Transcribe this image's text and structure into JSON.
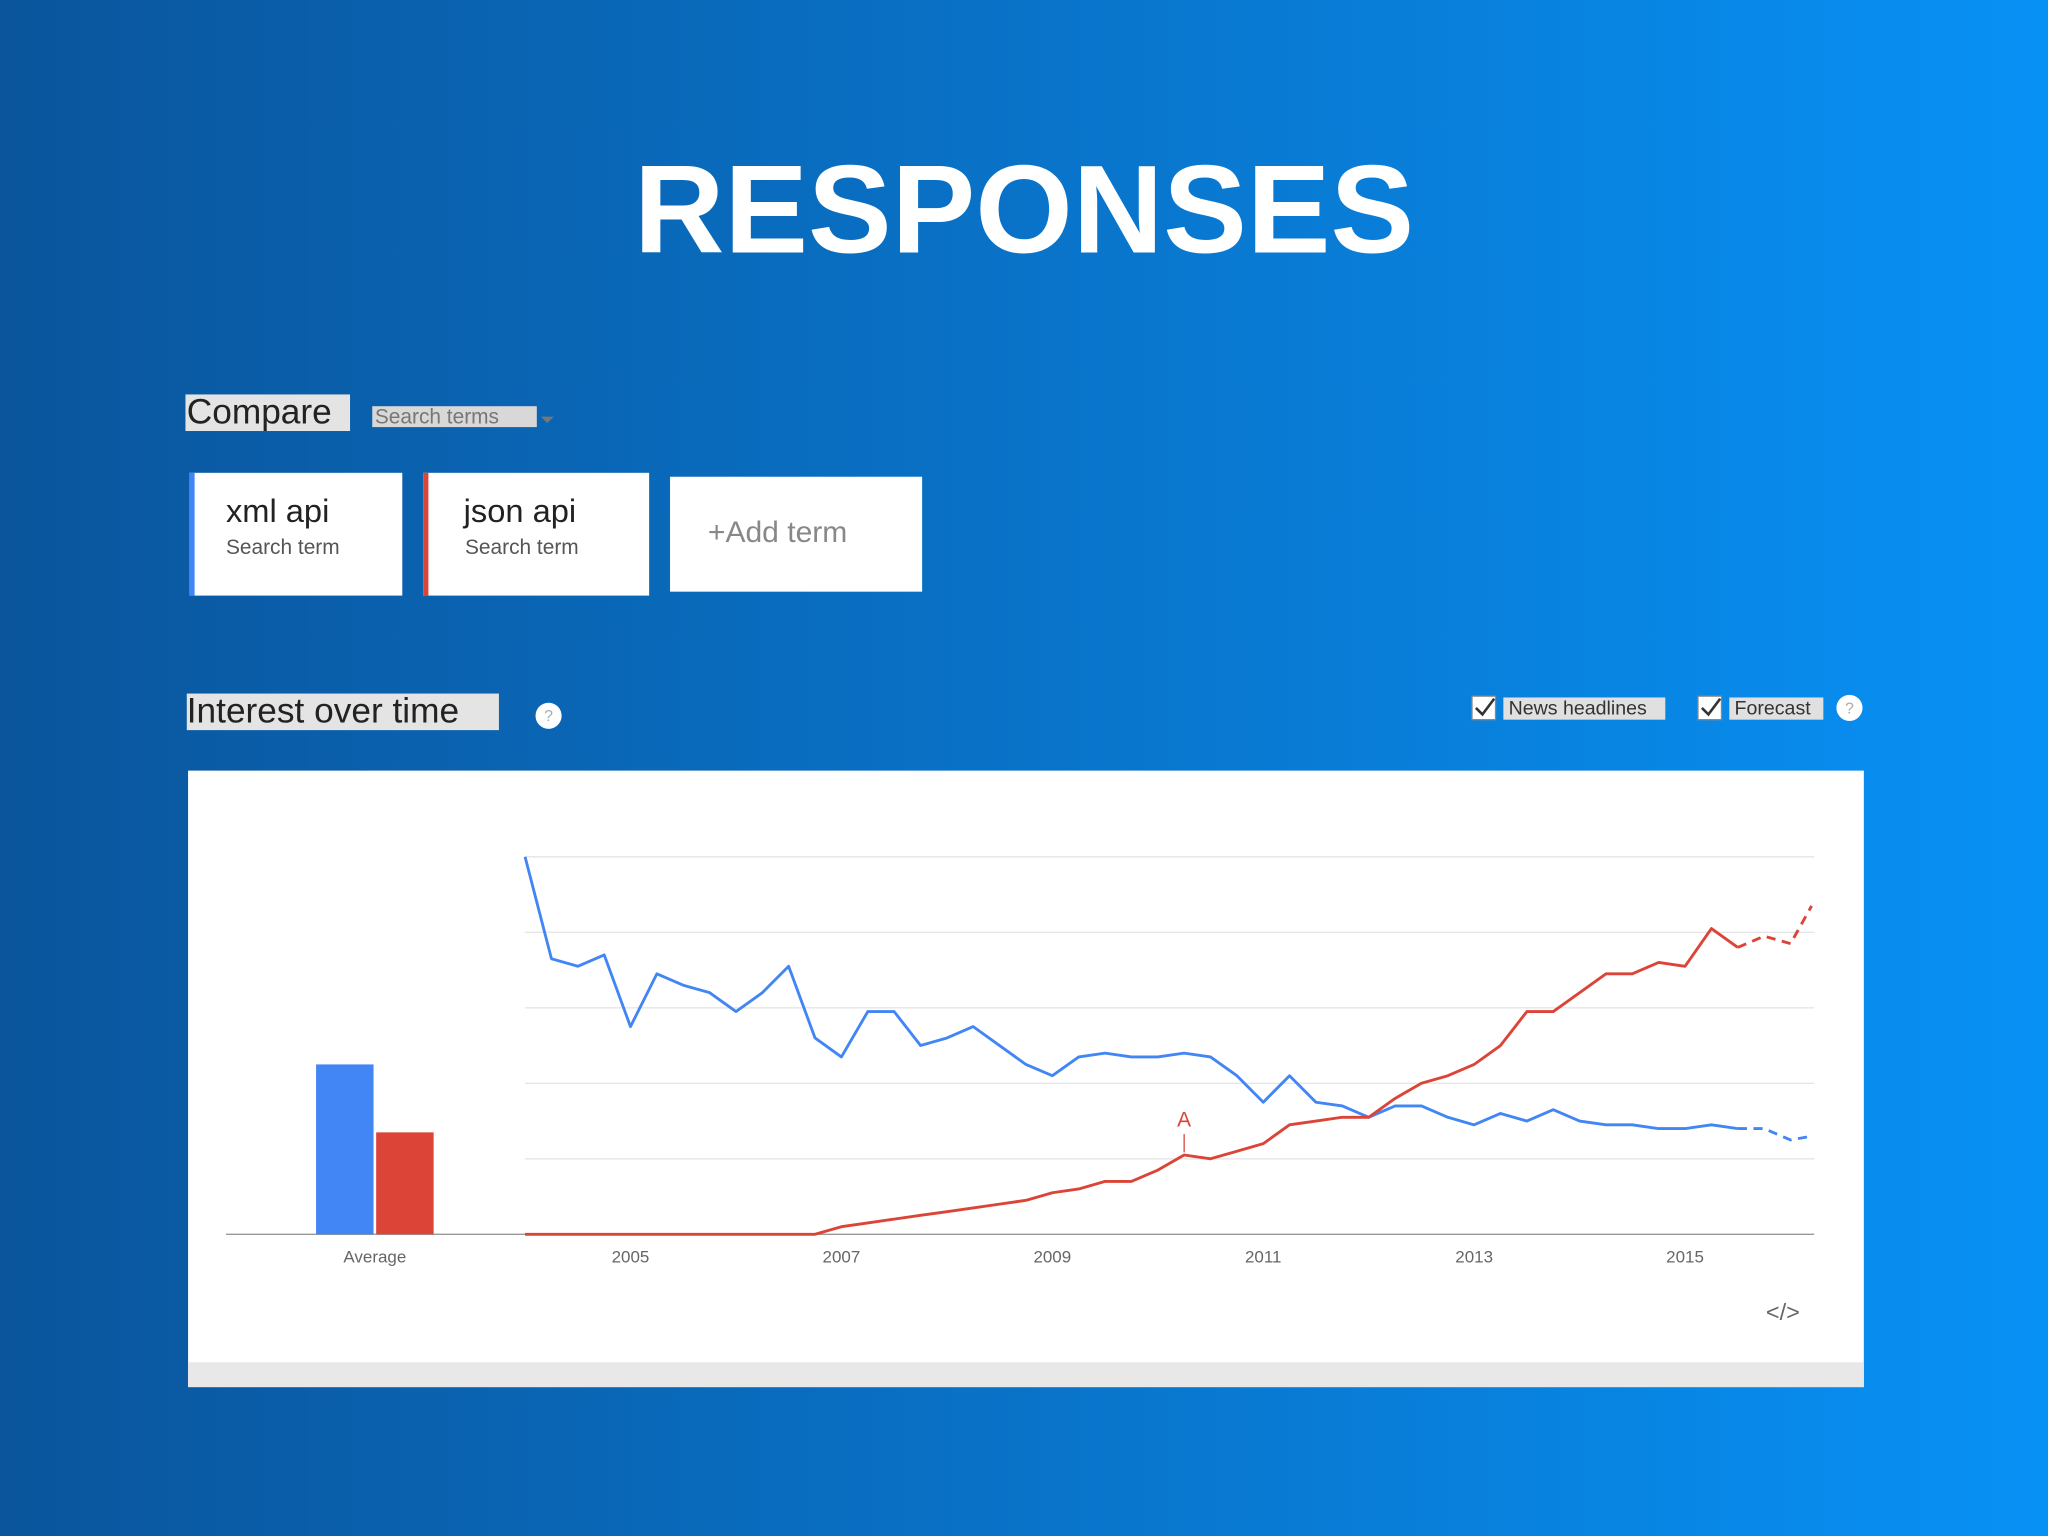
{
  "title": "RESPONSES",
  "compare": {
    "label": "Compare",
    "hint": "Search terms"
  },
  "terms": [
    {
      "sub": "Search term"
    },
    {
      "sub": "Search term"
    }
  ],
  "add_term": "+Add term",
  "section": {
    "label": "Interest over time",
    "help": "?"
  },
  "options": [
    {
      "label": "News headlines",
      "checked": true
    },
    {
      "label": "Forecast",
      "checked": true
    }
  ],
  "options_help": "?",
  "embed": "</>",
  "chart_data": {
    "type": "line",
    "xlim": [
      2004,
      2016.2
    ],
    "ylim": [
      0,
      100
    ],
    "xticks": [
      2005,
      2007,
      2009,
      2011,
      2013,
      2015
    ],
    "yticks": [
      0,
      20,
      40,
      60,
      80,
      100
    ],
    "grid": true,
    "forecast_from": 2015.5,
    "x": [
      2004,
      2004.25,
      2004.5,
      2004.75,
      2005,
      2005.25,
      2005.5,
      2005.75,
      2006,
      2006.25,
      2006.5,
      2006.75,
      2007,
      2007.25,
      2007.5,
      2007.75,
      2008,
      2008.25,
      2008.5,
      2008.75,
      2009,
      2009.25,
      2009.5,
      2009.75,
      2010,
      2010.25,
      2010.5,
      2010.75,
      2011,
      2011.25,
      2011.5,
      2011.75,
      2012,
      2012.25,
      2012.5,
      2012.75,
      2013,
      2013.25,
      2013.5,
      2013.75,
      2014,
      2014.25,
      2014.5,
      2014.75,
      2015,
      2015.25,
      2015.5,
      2015.75,
      2016,
      2016.2
    ],
    "series": [
      {
        "name": "xml api",
        "color": "#4285f4",
        "values": [
          100,
          73,
          71,
          74,
          55,
          69,
          66,
          64,
          59,
          64,
          71,
          52,
          47,
          59,
          59,
          50,
          52,
          55,
          50,
          45,
          42,
          47,
          48,
          47,
          47,
          48,
          47,
          42,
          35,
          42,
          35,
          34,
          31,
          34,
          34,
          31,
          29,
          32,
          30,
          33,
          30,
          29,
          29,
          28,
          28,
          29,
          28,
          28,
          25,
          26
        ]
      },
      {
        "name": "json api",
        "color": "#db4437",
        "values": [
          0,
          0,
          0,
          0,
          0,
          0,
          0,
          0,
          0,
          0,
          0,
          0,
          2,
          3,
          4,
          5,
          6,
          7,
          8,
          9,
          11,
          12,
          14,
          14,
          17,
          21,
          20,
          22,
          24,
          29,
          30,
          31,
          31,
          36,
          40,
          42,
          45,
          50,
          59,
          59,
          64,
          69,
          69,
          72,
          71,
          81,
          76,
          79,
          77,
          87
        ]
      }
    ],
    "average": {
      "label": "Average",
      "values": [
        45,
        27
      ]
    },
    "annotations": [
      {
        "label": "A",
        "x": 2010.25
      }
    ]
  }
}
